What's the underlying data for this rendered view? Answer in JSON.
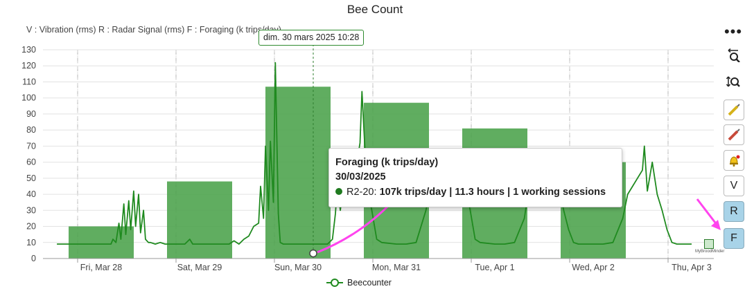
{
  "title": "Bee Count",
  "subtitle": "V : Vibration (rms) R : Radar Signal (rms) F : Foraging (k trips/day)",
  "crosshair_label": "dim. 30 mars 2025 10:28",
  "tooltip": {
    "title": "Foraging (k trips/day)",
    "date": "30/03/2025",
    "series_prefix": "R2-20:",
    "value_text": "107k trips/day | 11.3 hours | 1 working sessions"
  },
  "legend": {
    "label": "Beecounter"
  },
  "toolbar": {
    "menu": "•••",
    "zoom_x": "zoom-x-icon",
    "zoom_y": "zoom-y-icon",
    "v_label": "V",
    "r_label": "R",
    "f_label": "F"
  },
  "watermark": "MyBroodMinder",
  "colors": {
    "bar": "#4aa24a",
    "line": "#1f8a1f",
    "arrow": "#ff44ee"
  },
  "chart_data": {
    "type": "bar",
    "title": "Bee Count",
    "x_tick_labels": [
      "Fri, Mar 28",
      "Sat, Mar 29",
      "Sun, Mar 30",
      "Mon, Mar 31",
      "Tue, Apr 1",
      "Wed, Apr 2",
      "Thu, Apr 3"
    ],
    "ylim": [
      0,
      130
    ],
    "y_ticks": [
      0,
      10,
      20,
      30,
      40,
      50,
      60,
      70,
      80,
      90,
      100,
      110,
      120,
      130
    ],
    "grid": true,
    "legend_position": "bottom",
    "series": [
      {
        "name": "Foraging (k trips/day)",
        "type": "bar",
        "x": [
          0,
          1,
          2,
          3,
          4,
          5
        ],
        "values": [
          20,
          48,
          107,
          97,
          81,
          60
        ]
      },
      {
        "name": "Beecounter",
        "type": "line",
        "x": [
          -0.45,
          -0.3,
          -0.1,
          0.1,
          0.12,
          0.15,
          0.18,
          0.2,
          0.23,
          0.25,
          0.28,
          0.3,
          0.33,
          0.35,
          0.38,
          0.4,
          0.43,
          0.45,
          0.48,
          0.5,
          0.55,
          0.6,
          0.65,
          0.7,
          0.75,
          0.8,
          0.85,
          0.9,
          0.93,
          0.97,
          1.0,
          1.1,
          1.2,
          1.3,
          1.35,
          1.4,
          1.45,
          1.5,
          1.55,
          1.6,
          1.62,
          1.65,
          1.67,
          1.7,
          1.72,
          1.75,
          1.77,
          1.8,
          1.82,
          1.85,
          1.9,
          2.0,
          2.1,
          2.2,
          2.3,
          2.35,
          2.38,
          2.4,
          2.43,
          2.45,
          2.48,
          2.5,
          2.55,
          2.6,
          2.63,
          2.65,
          2.7,
          2.75,
          2.8,
          2.85,
          3.0,
          3.1,
          3.2,
          3.3,
          3.35,
          3.4,
          3.45,
          3.5,
          3.55,
          3.6,
          3.65,
          3.7,
          3.75,
          3.8,
          3.85,
          4.0,
          4.1,
          4.2,
          4.3,
          4.35,
          4.4,
          4.45,
          4.5,
          4.55,
          4.6,
          4.65,
          4.7,
          4.75,
          4.8,
          4.85,
          5.0,
          5.1,
          5.2,
          5.3,
          5.35,
          5.4,
          5.45,
          5.5,
          5.52,
          5.55,
          5.6,
          5.65,
          5.7,
          5.75,
          5.8,
          5.85,
          5.95,
          6.0
        ],
        "values": [
          9,
          9,
          9,
          9,
          12,
          10,
          22,
          12,
          34,
          15,
          36,
          18,
          42,
          20,
          40,
          16,
          30,
          12,
          10,
          10,
          9,
          10,
          9,
          9,
          9,
          9,
          9,
          12,
          9,
          9,
          9,
          9,
          9,
          9,
          11,
          9,
          12,
          14,
          20,
          22,
          45,
          25,
          70,
          30,
          73,
          35,
          122,
          28,
          10,
          9,
          9,
          9,
          9,
          9,
          9,
          12,
          28,
          45,
          30,
          40,
          38,
          45,
          58,
          60,
          72,
          104,
          45,
          30,
          12,
          10,
          9,
          9,
          10,
          30,
          45,
          65,
          40,
          55,
          40,
          50,
          60,
          45,
          30,
          12,
          10,
          9,
          9,
          10,
          25,
          45,
          55,
          40,
          50,
          38,
          60,
          45,
          30,
          18,
          10,
          9,
          9,
          9,
          10,
          25,
          40,
          45,
          50,
          55,
          70,
          42,
          60,
          40,
          30,
          18,
          10,
          9,
          9,
          9
        ]
      }
    ]
  }
}
